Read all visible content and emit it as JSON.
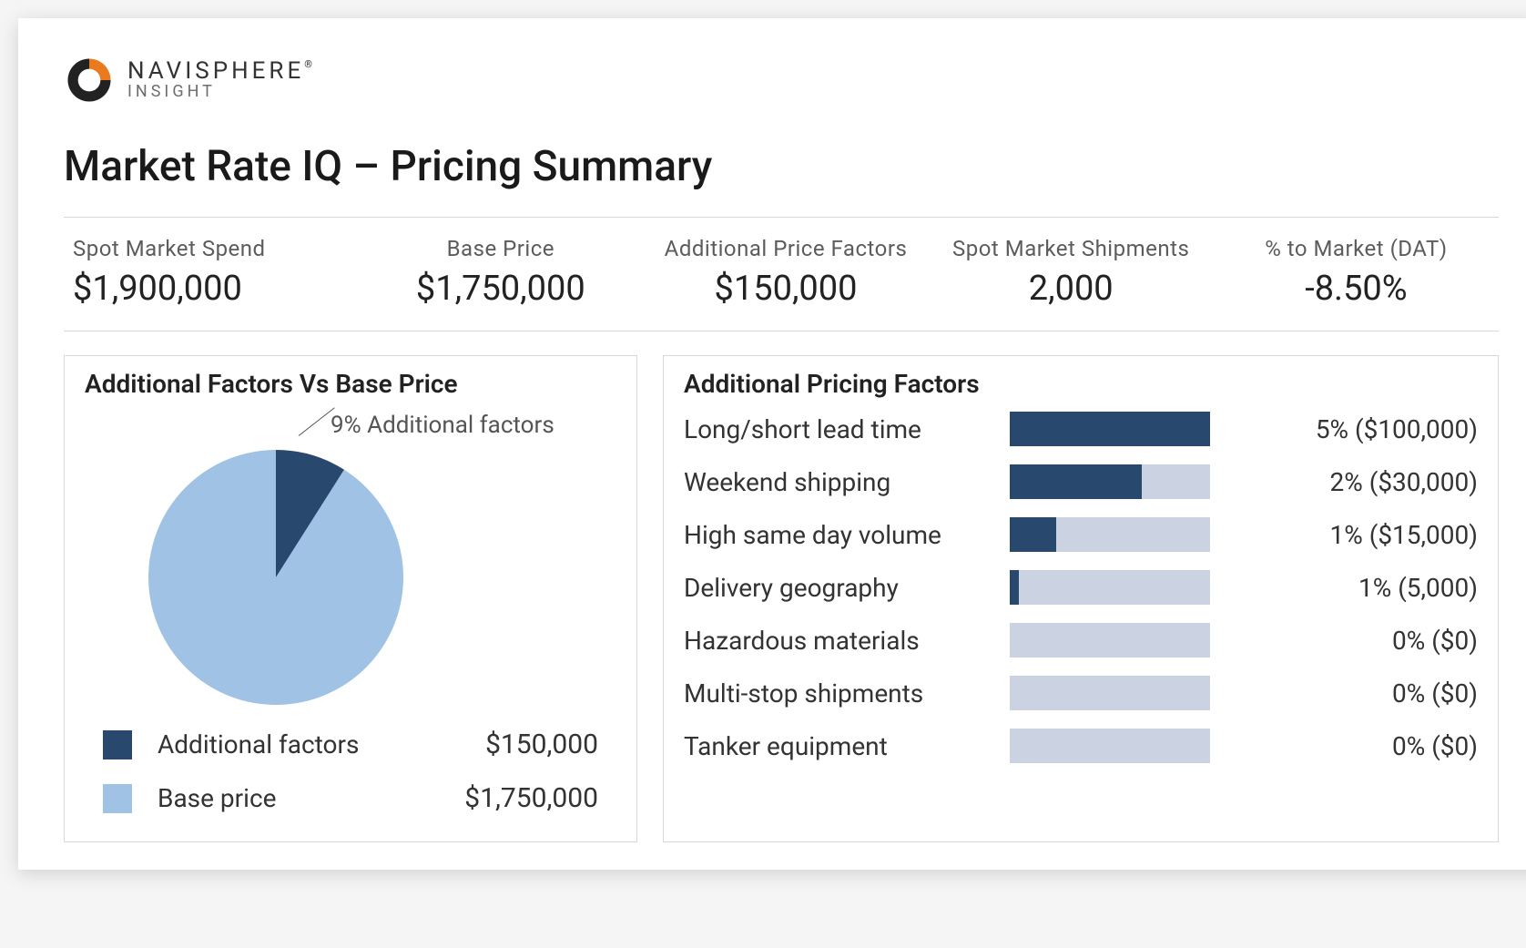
{
  "brand": {
    "name": "NAVISPHERE",
    "registered_mark": "®",
    "subtitle": "INSIGHT",
    "logo_colors": {
      "outer_arc": "#222222",
      "wedge": "#eb7a1f",
      "inner": "#ffffff"
    }
  },
  "page_title": "Market Rate IQ – Pricing Summary",
  "kpis": [
    {
      "label": "Spot Market Spend",
      "value": "$1,900,000"
    },
    {
      "label": "Base Price",
      "value": "$1,750,000"
    },
    {
      "label": "Additional Price Factors",
      "value": "$150,000"
    },
    {
      "label": "Spot Market Shipments",
      "value": "2,000"
    },
    {
      "label": "% to Market (DAT)",
      "value": "-8.50%"
    }
  ],
  "pie_panel": {
    "title": "Additional Factors Vs Base Price",
    "callout": "9% Additional factors",
    "chart": {
      "type": "pie",
      "radius": 140,
      "slices": [
        {
          "name": "Additional factors",
          "pct": 9,
          "color": "#28486e"
        },
        {
          "name": "Base price",
          "pct": 91,
          "color": "#9fc2e5"
        }
      ],
      "start_angle_deg": -90
    },
    "legend": [
      {
        "swatch": "#28486e",
        "label": "Additional factors",
        "value": "$150,000"
      },
      {
        "swatch": "#9fc2e5",
        "label": "Base price",
        "value": "$1,750,000"
      }
    ]
  },
  "factors_panel": {
    "title": "Additional Pricing Factors",
    "bar_track_color": "#cbd3e3",
    "bar_fill_color": "#28486e",
    "max_pct": 5,
    "rows": [
      {
        "label": "Long/short lead time",
        "pct": 5,
        "value_text": "5% ($100,000)"
      },
      {
        "label": "Weekend shipping",
        "pct": 2,
        "value_text": "2% ($30,000)",
        "fill_override_pct": 3.3
      },
      {
        "label": "High same day volume",
        "pct": 1,
        "value_text": "1% ($15,000)",
        "fill_override_pct": 1.15
      },
      {
        "label": "Delivery geography",
        "pct": 1,
        "value_text": "1% (5,000)",
        "fill_override_pct": 0.22
      },
      {
        "label": "Hazardous materials",
        "pct": 0,
        "value_text": "0% ($0)"
      },
      {
        "label": "Multi-stop shipments",
        "pct": 0,
        "value_text": "0% ($0)"
      },
      {
        "label": "Tanker equipment",
        "pct": 0,
        "value_text": "0% ($0)"
      }
    ]
  },
  "colors": {
    "text_primary": "#222222",
    "text_secondary": "#5c5c5c",
    "border": "#d8d8d8",
    "background": "#ffffff"
  }
}
